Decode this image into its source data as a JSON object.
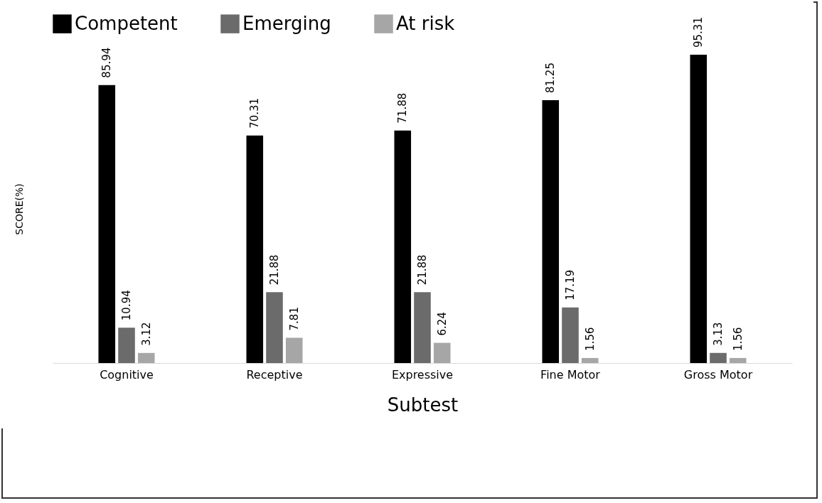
{
  "chart_data": {
    "type": "bar",
    "xlabel": "Subtest",
    "ylabel": "SCORE(%)",
    "categories": [
      "Cognitive",
      "Receptive",
      "Expressive",
      "Fine Motor",
      "Gross Motor"
    ],
    "series": [
      {
        "name": "Competent",
        "color": "#000000",
        "values": [
          85.94,
          70.31,
          71.88,
          81.25,
          95.31
        ]
      },
      {
        "name": "Emerging",
        "color": "#6b6b6b",
        "values": [
          10.94,
          21.88,
          21.88,
          17.19,
          3.13
        ]
      },
      {
        "name": "At risk",
        "color": "#a6a6a6",
        "values": [
          3.12,
          7.81,
          6.24,
          1.56,
          1.56
        ]
      }
    ],
    "data_labels": true,
    "legend": "top"
  }
}
